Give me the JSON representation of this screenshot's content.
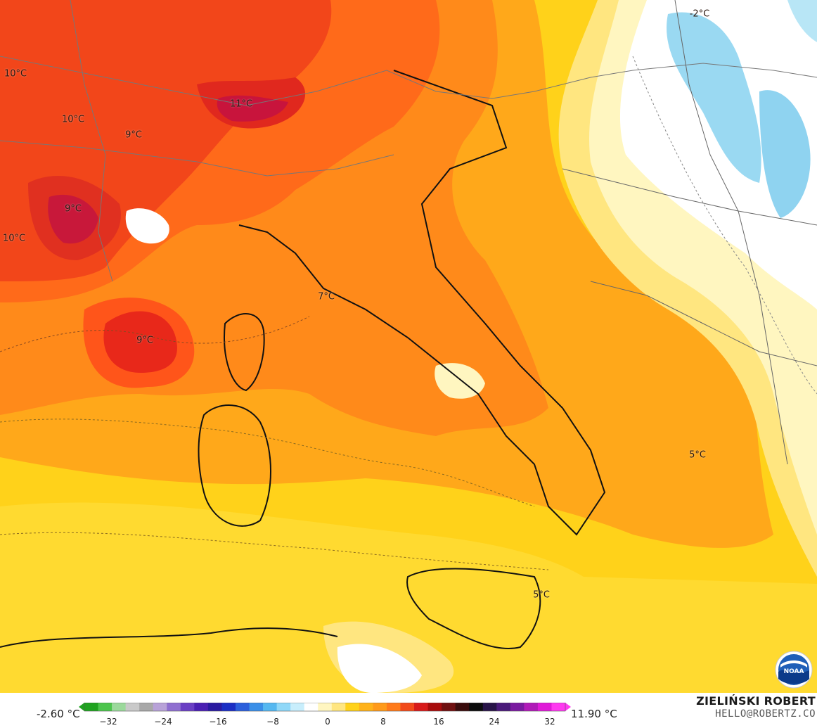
{
  "map": {
    "temperature_labels": [
      {
        "id": "t1",
        "text": "-2°C"
      },
      {
        "id": "t2",
        "text": "10°C"
      },
      {
        "id": "t3",
        "text": "10°C"
      },
      {
        "id": "t4",
        "text": "11°C"
      },
      {
        "id": "t5",
        "text": "9°C"
      },
      {
        "id": "t6",
        "text": "9°C"
      },
      {
        "id": "t7",
        "text": "10°C"
      },
      {
        "id": "t8",
        "text": "7°C"
      },
      {
        "id": "t9",
        "text": "9°C"
      },
      {
        "id": "t10",
        "text": "5°C"
      },
      {
        "id": "t11",
        "text": "5°C"
      }
    ],
    "logo_text": "NOAA"
  },
  "legend": {
    "min_value": "-2.60 °C",
    "max_value": "11.90 °C",
    "ticks": [
      "−32",
      "−24",
      "−16",
      "−8",
      "0",
      "8",
      "16",
      "24",
      "32"
    ],
    "colors": [
      "#1fa31f",
      "#4cc54c",
      "#9bd99b",
      "#c9c9c9",
      "#a8a8a8",
      "#b8a2d8",
      "#8f6fd0",
      "#6a3fc4",
      "#4a1fb3",
      "#2a1aa0",
      "#1b2ec4",
      "#2b5fdc",
      "#3a8fe8",
      "#55b8f0",
      "#8fd8f8",
      "#c8eefc",
      "#ffffff",
      "#fff6c0",
      "#ffe680",
      "#ffd21a",
      "#ffb21a",
      "#ff9a1a",
      "#ff7a1a",
      "#f24a1a",
      "#d81a1a",
      "#a80c0c",
      "#701010",
      "#3a0c0c",
      "#0c0c0c",
      "#281448",
      "#4a1a7a",
      "#7a1aa0",
      "#b01ab8",
      "#e01ad8",
      "#ff3af0"
    ]
  },
  "branding": {
    "name": "ZIELIŃSKI ROBERT",
    "email": "HELLO@ROBERTZ.CO"
  }
}
